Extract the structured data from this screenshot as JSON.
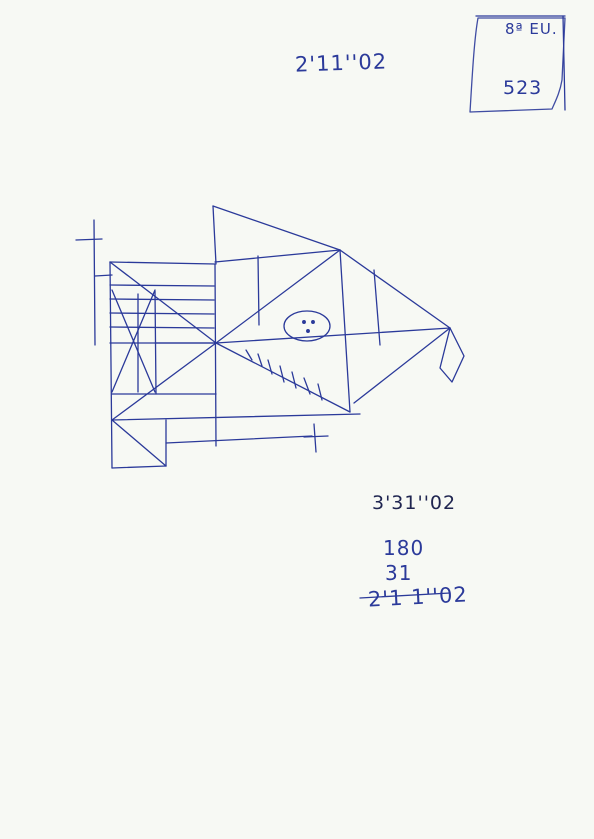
{
  "page": {
    "background": "#f7f9f4",
    "ink_color": "#2b3a9a"
  },
  "notes": {
    "top_time": "2'11''02",
    "code_top": "8ª EU.",
    "code_number": "523",
    "calc_title": "3'31''02",
    "calc_line1": "180",
    "calc_line2": "31",
    "calc_result": "2'1 1''02"
  },
  "sketch": {
    "kind": "hand-drawn geometric figure",
    "small_face_dots": 3
  }
}
